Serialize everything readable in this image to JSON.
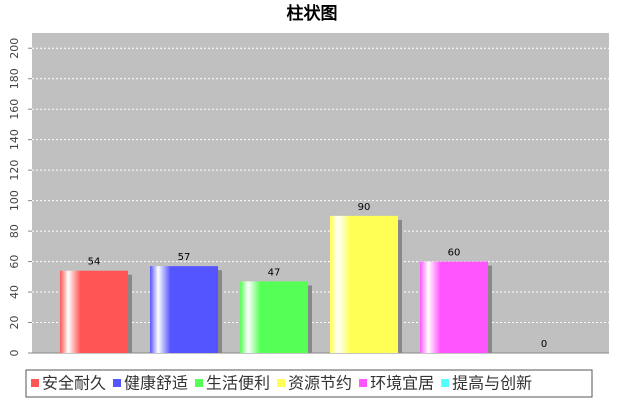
{
  "chart_data": {
    "type": "bar",
    "title": "柱状图",
    "categories": [
      "安全耐久",
      "健康舒适",
      "生活便利",
      "资源节约",
      "环境宜居",
      "提高与创新"
    ],
    "values": [
      54,
      57,
      47,
      90,
      60,
      0
    ],
    "colors": [
      "#ff5555",
      "#5555ff",
      "#55ff55",
      "#ffff55",
      "#ff55ff",
      "#55ffff"
    ],
    "ylim": [
      0,
      210
    ],
    "yticks": [
      0,
      20,
      40,
      60,
      80,
      100,
      120,
      140,
      160,
      180,
      200
    ],
    "grid": true
  }
}
